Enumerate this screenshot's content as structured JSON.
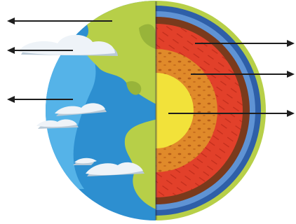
{
  "diagram": {
    "subject": "earth-interior-cross-section",
    "colors": {
      "background": "#ffffff",
      "ocean": "#2d8fd0",
      "ocean_light": "#55b3e8",
      "land": "#b7cf48",
      "land_dark": "#98b43a",
      "cloud": "#eef3f8",
      "cloud_shadow": "#b9c9d6",
      "crust_outer": "#2e5fa8",
      "crust_light": "#5f93d4",
      "upper_mantle": "#7a3a1c",
      "lower_mantle": "#e2402a",
      "outer_core": "#e08a2a",
      "inner_core": "#f2e23a",
      "arrow": "#1e1e1e"
    },
    "left_arrows": [
      {
        "name": "arrow-pointer-land"
      },
      {
        "name": "arrow-pointer-clouds"
      },
      {
        "name": "arrow-pointer-ocean"
      }
    ],
    "right_arrows": [
      {
        "name": "arrow-pointer-mantle"
      },
      {
        "name": "arrow-pointer-outer-core"
      },
      {
        "name": "arrow-pointer-inner-core"
      }
    ]
  }
}
